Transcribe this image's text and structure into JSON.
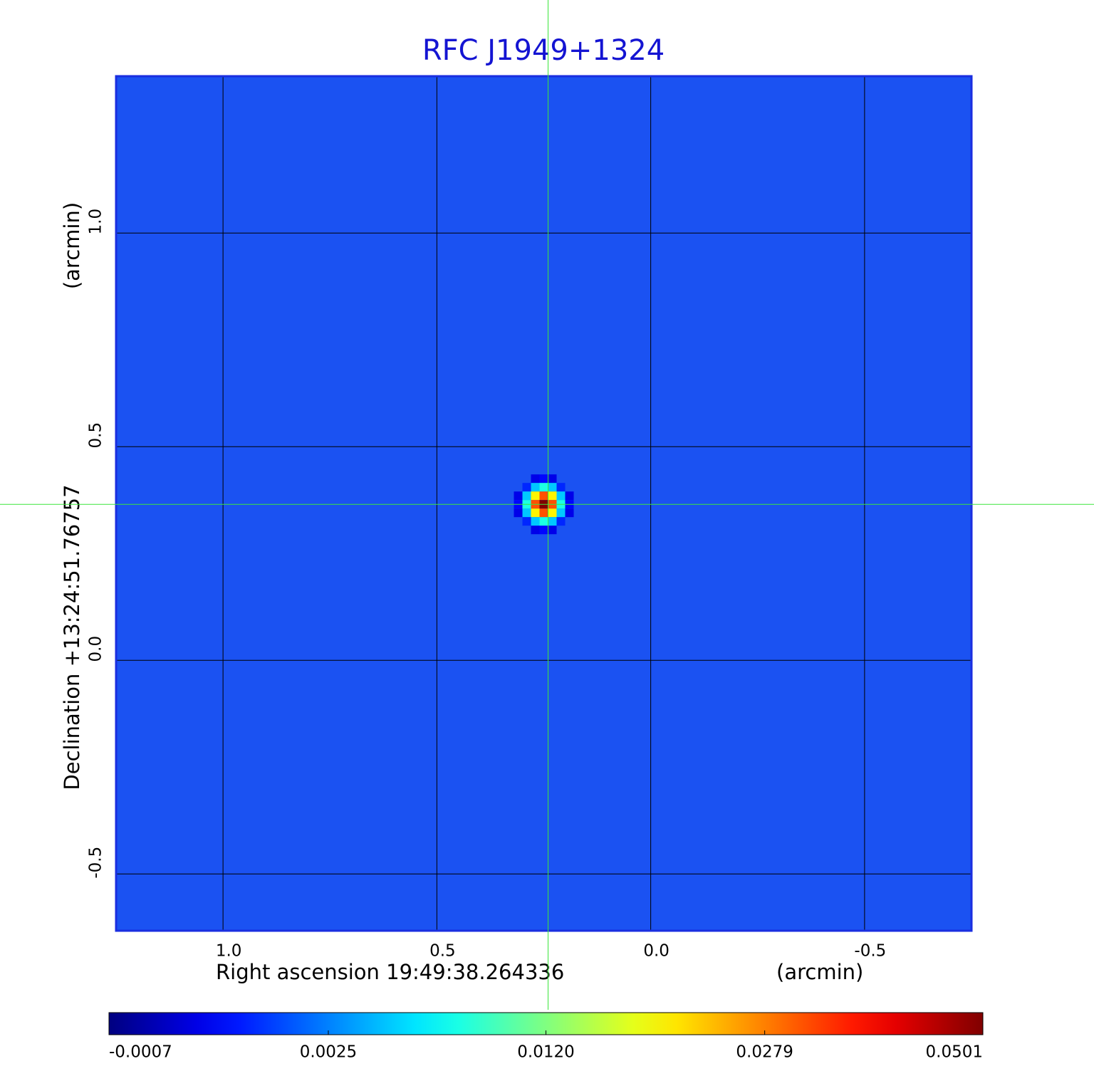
{
  "chart_data": {
    "type": "image",
    "title": "RFC J1949+1324",
    "x_label": "Right ascension  19:49:38.264336",
    "x_unit": "(arcmin)",
    "y_label": "Declination  +13:24:51.76757",
    "y_unit": "(arcmin)",
    "xlim": [
      1.25,
      -0.75
    ],
    "ylim": [
      -0.633,
      1.367
    ],
    "xticks": [
      {
        "value": 1,
        "label": "1.0"
      },
      0.5,
      {
        "value": 0,
        "label": "0.0"
      },
      -0.5
    ],
    "yticks": [
      {
        "value": 1,
        "label": "1.0"
      },
      0.5,
      {
        "value": 0,
        "label": "0.0"
      },
      -0.5
    ],
    "grid": true,
    "colormap": "jet",
    "source": {
      "x": 0.24,
      "y": 0.365,
      "peak": 0.0501
    },
    "colorbar": {
      "lim": [
        -0.0007,
        0.0501
      ],
      "scale": "sqrt",
      "ticks": [
        -0.0007,
        0.0025,
        {
          "value": 0.012,
          "label": "0.0120"
        },
        0.0279,
        0.0501
      ]
    }
  }
}
